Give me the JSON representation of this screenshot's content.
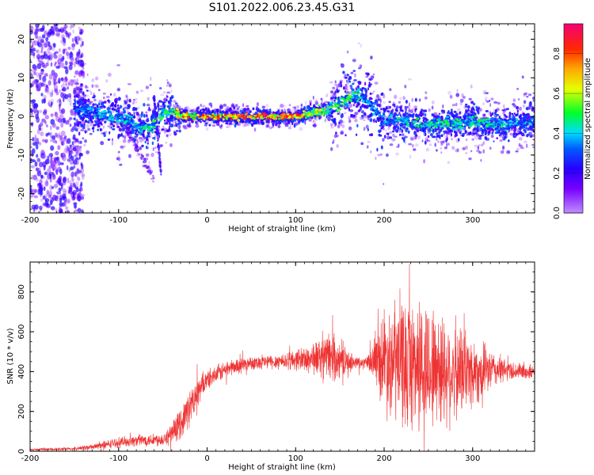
{
  "title": "S101.2022.006.23.45.G31",
  "chart_data": [
    {
      "type": "heatmap",
      "xlabel": "Height of straight line (km)",
      "ylabel": "Frequency (Hz)",
      "xlim": [
        -200,
        370
      ],
      "ylim": [
        -25,
        24
      ],
      "xticks": [
        "-200",
        "-100",
        "0",
        "100",
        "200",
        "300"
      ],
      "yticks": [
        "-20",
        "-10",
        "0",
        "10",
        "20"
      ],
      "colorbar": {
        "label": "Normalized spectral amplitude",
        "range": [
          0,
          0.95
        ],
        "ticks": [
          "0.0",
          "0.2",
          "0.4",
          "0.6",
          "0.8"
        ],
        "colormap": "hsv-like: purple, blue, cyan, green, yellow, orange, red, magenta"
      },
      "ridge": {
        "x": [
          -150,
          -130,
          -110,
          -90,
          -75,
          -62,
          -50,
          -40,
          -25,
          0,
          25,
          50,
          100,
          120,
          140,
          155,
          170,
          185,
          200,
          220,
          240,
          260,
          280,
          300,
          320,
          340,
          370
        ],
        "y": [
          2,
          1,
          0,
          -1,
          -3,
          -3,
          1,
          1,
          0,
          0,
          0,
          0,
          0,
          1,
          2,
          4,
          6,
          3,
          -1,
          -1,
          -2,
          -2,
          -2,
          -1,
          -2,
          -2,
          -1
        ],
        "level": [
          0.35,
          0.4,
          0.45,
          0.45,
          0.5,
          0.5,
          0.55,
          0.6,
          0.8,
          0.9,
          0.9,
          0.9,
          0.9,
          0.7,
          0.6,
          0.55,
          0.5,
          0.4,
          0.45,
          0.45,
          0.5,
          0.5,
          0.5,
          0.5,
          0.5,
          0.45,
          0.45
        ]
      }
    },
    {
      "type": "line",
      "xlabel": "Height of straight line (km)",
      "ylabel": "SNR (10 * v/v)",
      "xlim": [
        -200,
        370
      ],
      "ylim": [
        0,
        950
      ],
      "xticks": [
        "-200",
        "-100",
        "0",
        "100",
        "200",
        "300"
      ],
      "yticks": [
        "0",
        "200",
        "400",
        "600",
        "800"
      ],
      "series": [
        {
          "color": "#ee3333",
          "envelope": {
            "x": [
              -200,
              -150,
              -125,
              -100,
              -75,
              -50,
              -40,
              -30,
              -20,
              -10,
              0,
              25,
              50,
              75,
              100,
              125,
              140,
              160,
              180,
              190,
              200,
              215,
              230,
              245,
              260,
              280,
              300,
              320,
              340,
              370
            ],
            "mean": [
              8,
              12,
              25,
              45,
              55,
              60,
              90,
              140,
              220,
              300,
              360,
              420,
              445,
              450,
              460,
              470,
              475,
              450,
              440,
              460,
              470,
              450,
              440,
              430,
              420,
              400,
              400,
              410,
              405,
              395
            ],
            "spread": [
              6,
              10,
              20,
              30,
              35,
              40,
              60,
              90,
              110,
              80,
              60,
              50,
              40,
              45,
              60,
              110,
              150,
              60,
              30,
              120,
              320,
              380,
              400,
              400,
              360,
              300,
              220,
              120,
              60,
              40
            ]
          }
        }
      ]
    }
  ]
}
